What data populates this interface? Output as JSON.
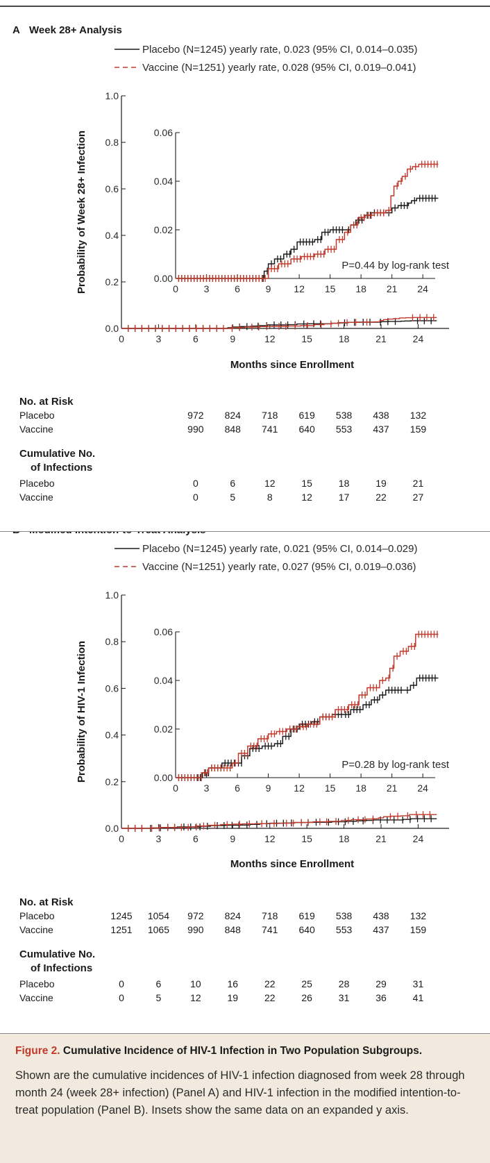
{
  "colors": {
    "placebo": "#1a1a1a",
    "vaccine": "#c0392b",
    "caption_bg": "#f2eadf",
    "figure_label": "#c0392b"
  },
  "chart_data": [
    {
      "type": "line",
      "panel_label": "A",
      "title": "Week 28+ Analysis",
      "xlabel": "Months since Enrollment",
      "ylabel": "Probability of Week 28+ Infection",
      "x_ticks": [
        "0",
        "3",
        "6",
        "9",
        "12",
        "15",
        "18",
        "21",
        "24"
      ],
      "y_ticks": [
        "0.0",
        "0.2",
        "0.4",
        "0.6",
        "0.8",
        "1.0"
      ],
      "xlim": [
        0,
        26.5
      ],
      "ylim": [
        0,
        1.0
      ],
      "legend": [
        "Placebo (N=1245) yearly rate, 0.023 (95% CI, 0.014–0.035)",
        "Vaccine (N=1251) yearly rate, 0.028 (95% CI, 0.019–0.041)"
      ],
      "series": [
        {
          "name": "Placebo",
          "x": [
            0,
            8.2,
            8.6,
            9.0,
            9.6,
            10.5,
            11.2,
            11.8,
            13.5,
            14.2,
            15.0,
            16.5,
            17.0,
            17.5,
            18.3,
            19.0,
            20.4,
            21.0,
            21.6,
            22.6,
            22.9,
            23.4,
            25.5
          ],
          "y": [
            0,
            0,
            0.003,
            0.006,
            0.008,
            0.01,
            0.012,
            0.015,
            0.016,
            0.019,
            0.02,
            0.02,
            0.022,
            0.024,
            0.026,
            0.027,
            0.027,
            0.029,
            0.03,
            0.031,
            0.032,
            0.033,
            0.033
          ]
        },
        {
          "name": "Vaccine",
          "x": [
            0,
            8.4,
            9.0,
            10.0,
            11.2,
            12.2,
            13.5,
            14.5,
            15.6,
            16.4,
            17.0,
            17.7,
            18.4,
            19.3,
            20.4,
            20.9,
            21.2,
            21.6,
            22.0,
            22.5,
            23.0,
            23.6,
            25.5
          ],
          "y": [
            0,
            0,
            0.004,
            0.006,
            0.008,
            0.009,
            0.01,
            0.012,
            0.016,
            0.019,
            0.022,
            0.025,
            0.026,
            0.027,
            0.028,
            0.034,
            0.038,
            0.04,
            0.042,
            0.045,
            0.046,
            0.047,
            0.047
          ]
        }
      ],
      "inset": {
        "xlim": [
          0,
          25.2
        ],
        "ylim": [
          0,
          0.06
        ],
        "x_ticks": [
          "0",
          "3",
          "6",
          "9",
          "12",
          "15",
          "18",
          "21",
          "24"
        ],
        "y_ticks": [
          "0.00",
          "0.02",
          "0.04",
          "0.06"
        ],
        "annotation": "P=0.44 by log-rank test"
      },
      "risk_table": {
        "header": "No. at Risk",
        "columns": [
          "6",
          "9",
          "12",
          "15",
          "18",
          "21",
          "24"
        ],
        "rows": [
          {
            "label": "Placebo",
            "values": [
              "972",
              "824",
              "718",
              "619",
              "538",
              "438",
              "132"
            ]
          },
          {
            "label": "Vaccine",
            "values": [
              "990",
              "848",
              "741",
              "640",
              "553",
              "437",
              "159"
            ]
          }
        ]
      },
      "infection_table": {
        "header_line1": "Cumulative No.",
        "header_line2": "of Infections",
        "columns": [
          "6",
          "9",
          "12",
          "15",
          "18",
          "21",
          "24"
        ],
        "rows": [
          {
            "label": "Placebo",
            "values": [
              "0",
              "6",
              "12",
              "15",
              "18",
              "19",
              "21"
            ]
          },
          {
            "label": "Vaccine",
            "values": [
              "0",
              "5",
              "8",
              "12",
              "17",
              "22",
              "27"
            ]
          }
        ]
      }
    },
    {
      "type": "line",
      "panel_label": "B",
      "title": "Modified Intention-to-Treat Analysis",
      "xlabel": "Months since Enrollment",
      "ylabel": "Probability of HIV-1 Infection",
      "x_ticks": [
        "0",
        "3",
        "6",
        "9",
        "12",
        "15",
        "18",
        "21",
        "24"
      ],
      "y_ticks": [
        "0.0",
        "0.2",
        "0.4",
        "0.6",
        "0.8",
        "1.0"
      ],
      "xlim": [
        0,
        26.5
      ],
      "ylim": [
        0,
        1.0
      ],
      "legend": [
        "Placebo (N=1245) yearly rate, 0.021 (95% CI, 0.014–0.029)",
        "Vaccine (N=1251) yearly rate, 0.027 (95% CI, 0.019–0.036)"
      ],
      "series": [
        {
          "name": "Placebo",
          "x": [
            0,
            1.8,
            2.6,
            3.2,
            4.5,
            5.8,
            6.4,
            7.2,
            8.4,
            9.6,
            10.4,
            11.2,
            12.0,
            13.2,
            14.0,
            15.2,
            16.2,
            17.0,
            18.2,
            19.0,
            19.8,
            20.4,
            22.2,
            22.8,
            23.4,
            25.5
          ],
          "y": [
            0,
            0,
            0.002,
            0.004,
            0.006,
            0.006,
            0.009,
            0.012,
            0.013,
            0.014,
            0.017,
            0.02,
            0.022,
            0.023,
            0.025,
            0.026,
            0.026,
            0.028,
            0.03,
            0.032,
            0.034,
            0.036,
            0.036,
            0.038,
            0.041,
            0.041
          ]
        },
        {
          "name": "Vaccine",
          "x": [
            0,
            1.9,
            2.5,
            3.2,
            5.5,
            6.1,
            7.0,
            8.0,
            9.0,
            9.8,
            10.8,
            11.8,
            12.8,
            14.0,
            15.5,
            16.8,
            17.8,
            18.6,
            19.8,
            20.4,
            20.8,
            21.2,
            21.8,
            22.6,
            23.3,
            25.5
          ],
          "y": [
            0,
            0,
            0.002,
            0.004,
            0.006,
            0.01,
            0.013,
            0.016,
            0.018,
            0.019,
            0.02,
            0.021,
            0.022,
            0.025,
            0.028,
            0.03,
            0.034,
            0.037,
            0.04,
            0.041,
            0.045,
            0.05,
            0.052,
            0.054,
            0.059,
            0.059
          ]
        }
      ],
      "inset": {
        "xlim": [
          0,
          25.2
        ],
        "ylim": [
          0,
          0.06
        ],
        "x_ticks": [
          "0",
          "3",
          "6",
          "9",
          "12",
          "15",
          "18",
          "21",
          "24"
        ],
        "y_ticks": [
          "0.00",
          "0.02",
          "0.04",
          "0.06"
        ],
        "annotation": "P=0.28 by log-rank test"
      },
      "risk_table": {
        "header": "No. at Risk",
        "columns": [
          "0",
          "3",
          "6",
          "9",
          "12",
          "15",
          "18",
          "21",
          "24"
        ],
        "rows": [
          {
            "label": "Placebo",
            "values": [
              "1245",
              "1054",
              "972",
              "824",
              "718",
              "619",
              "538",
              "438",
              "132"
            ]
          },
          {
            "label": "Vaccine",
            "values": [
              "1251",
              "1065",
              "990",
              "848",
              "741",
              "640",
              "553",
              "437",
              "159"
            ]
          }
        ]
      },
      "infection_table": {
        "header_line1": "Cumulative No.",
        "header_line2": "of Infections",
        "columns": [
          "0",
          "3",
          "6",
          "9",
          "12",
          "15",
          "18",
          "21",
          "24"
        ],
        "rows": [
          {
            "label": "Placebo",
            "values": [
              "0",
              "6",
              "10",
              "16",
              "22",
              "25",
              "28",
              "29",
              "31"
            ]
          },
          {
            "label": "Vaccine",
            "values": [
              "0",
              "5",
              "12",
              "19",
              "22",
              "26",
              "31",
              "36",
              "41"
            ]
          }
        ]
      }
    }
  ],
  "caption": {
    "figure_label": "Figure 2.",
    "heading": "Cumulative Incidence of HIV-1 Infection in Two Population Subgroups.",
    "body": "Shown are the cumulative incidences of HIV-1 infection diagnosed from week 28 through month 24 (week 28+ infection) (Panel A) and HIV-1 infection in the modified intention-to-treat population (Panel B). Insets show the same data on an expanded y axis."
  }
}
